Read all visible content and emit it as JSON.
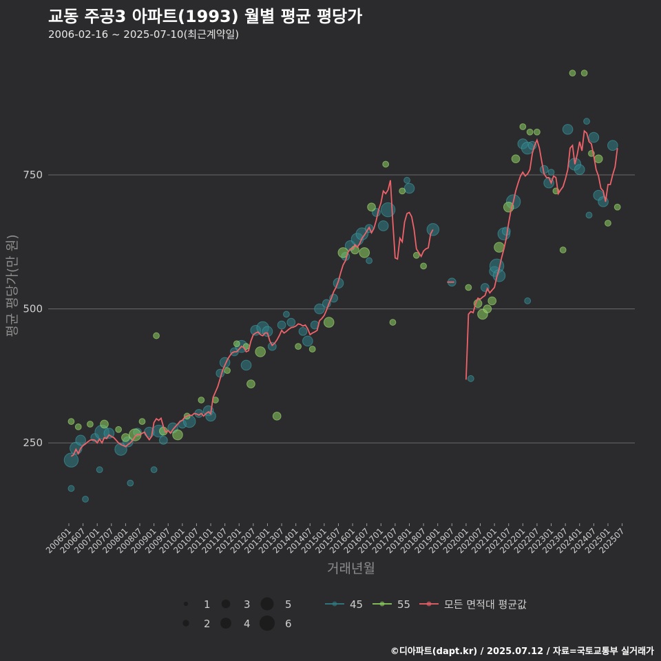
{
  "title": "교동 주공3 아파트(1993) 월별 평균 평당가",
  "subtitle": "2006-02-16 ~ 2025-07-10(최근계약일)",
  "footer": "©디아파트(dapt.kr) / 2025.07.12 / 자료=국토교통부 실거래가",
  "colors": {
    "background": "#2b2b2d",
    "grid": "#6a6a6a",
    "series_45": "#2f7f86",
    "series_55": "#8ccf5e",
    "series_all": "#f0636a"
  },
  "chart_data": {
    "type": "line+scatter",
    "xlabel": "거래년월",
    "ylabel": "평균 평당가(만 원)",
    "ylim": [
      100,
      980
    ],
    "yticks": [
      250,
      500,
      750
    ],
    "xticks": [
      "200601",
      "200607",
      "200701",
      "200707",
      "200801",
      "200807",
      "200901",
      "200907",
      "201001",
      "201007",
      "201101",
      "201107",
      "201201",
      "201207",
      "201301",
      "201307",
      "201401",
      "201407",
      "201501",
      "201507",
      "201601",
      "201607",
      "201701",
      "201707",
      "201801",
      "201807",
      "201901",
      "201907",
      "202001",
      "202007",
      "202101",
      "202107",
      "202201",
      "202207",
      "202301",
      "202307",
      "202401",
      "202407",
      "202501",
      "202507"
    ],
    "size_legend": [
      "1",
      "2",
      "3",
      "4",
      "5",
      "6"
    ],
    "color_legend": [
      {
        "key": "45",
        "label": "45"
      },
      {
        "key": "55",
        "label": "55"
      },
      {
        "key": "all",
        "label": "모든 면적대 평균값"
      }
    ],
    "line_all": [
      [
        "2006-02",
        225
      ],
      [
        "2006-03",
        228
      ],
      [
        "2006-04",
        238
      ],
      [
        "2006-05",
        230
      ],
      [
        "2006-06",
        240
      ],
      [
        "2006-07",
        245
      ],
      [
        "2006-08",
        248
      ],
      [
        "2006-09",
        252
      ],
      [
        "2006-10",
        255
      ],
      [
        "2006-11",
        256
      ],
      [
        "2006-12",
        255
      ],
      [
        "2007-01",
        250
      ],
      [
        "2007-02",
        257
      ],
      [
        "2007-03",
        250
      ],
      [
        "2007-04",
        260
      ],
      [
        "2007-05",
        258
      ],
      [
        "2007-06",
        265
      ],
      [
        "2007-07",
        262
      ],
      [
        "2007-08",
        260
      ],
      [
        "2007-09",
        255
      ],
      [
        "2007-10",
        250
      ],
      [
        "2007-11",
        247
      ],
      [
        "2007-12",
        245
      ],
      [
        "2008-01",
        243
      ],
      [
        "2008-02",
        247
      ],
      [
        "2008-03",
        250
      ],
      [
        "2008-04",
        255
      ],
      [
        "2008-05",
        262
      ],
      [
        "2008-06",
        266
      ],
      [
        "2008-07",
        265
      ],
      [
        "2008-08",
        268
      ],
      [
        "2008-09",
        270
      ],
      [
        "2008-10",
        262
      ],
      [
        "2008-11",
        256
      ],
      [
        "2008-12",
        262
      ],
      [
        "2009-01",
        288
      ],
      [
        "2009-02",
        295
      ],
      [
        "2009-03",
        292
      ],
      [
        "2009-04",
        296
      ],
      [
        "2009-05",
        280
      ],
      [
        "2009-06",
        270
      ],
      [
        "2009-07",
        273
      ],
      [
        "2009-08",
        268
      ],
      [
        "2009-09",
        275
      ],
      [
        "2009-10",
        280
      ],
      [
        "2009-11",
        285
      ],
      [
        "2009-12",
        290
      ],
      [
        "2010-01",
        292
      ],
      [
        "2010-02",
        298
      ],
      [
        "2010-03",
        300
      ],
      [
        "2010-04",
        302
      ],
      [
        "2010-05",
        301
      ],
      [
        "2010-06",
        305
      ],
      [
        "2010-07",
        304
      ],
      [
        "2010-08",
        302
      ],
      [
        "2010-09",
        305
      ],
      [
        "2010-10",
        300
      ],
      [
        "2010-11",
        305
      ],
      [
        "2010-12",
        308
      ],
      [
        "2011-01",
        304
      ],
      [
        "2011-02",
        335
      ],
      [
        "2011-03",
        345
      ],
      [
        "2011-04",
        355
      ],
      [
        "2011-05",
        370
      ],
      [
        "2011-06",
        385
      ],
      [
        "2011-07",
        395
      ],
      [
        "2011-08",
        405
      ],
      [
        "2011-09",
        412
      ],
      [
        "2011-10",
        418
      ],
      [
        "2011-11",
        420
      ],
      [
        "2011-12",
        420
      ],
      [
        "2012-01",
        425
      ],
      [
        "2012-02",
        430
      ],
      [
        "2012-03",
        428
      ],
      [
        "2012-04",
        420
      ],
      [
        "2012-05",
        422
      ],
      [
        "2012-06",
        440
      ],
      [
        "2012-07",
        452
      ],
      [
        "2012-08",
        455
      ],
      [
        "2012-09",
        457
      ],
      [
        "2012-10",
        452
      ],
      [
        "2012-11",
        450
      ],
      [
        "2012-12",
        455
      ],
      [
        "2013-01",
        455
      ],
      [
        "2013-02",
        440
      ],
      [
        "2013-03",
        432
      ],
      [
        "2013-04",
        436
      ],
      [
        "2013-05",
        442
      ],
      [
        "2013-06",
        450
      ],
      [
        "2013-07",
        460
      ],
      [
        "2013-08",
        455
      ],
      [
        "2013-09",
        458
      ],
      [
        "2013-10",
        462
      ],
      [
        "2013-11",
        465
      ],
      [
        "2013-12",
        466
      ],
      [
        "2014-01",
        468
      ],
      [
        "2014-02",
        472
      ],
      [
        "2014-03",
        471
      ],
      [
        "2014-04",
        468
      ],
      [
        "2014-05",
        470
      ],
      [
        "2014-06",
        463
      ],
      [
        "2014-07",
        452
      ],
      [
        "2014-08",
        455
      ],
      [
        "2014-09",
        457
      ],
      [
        "2014-10",
        460
      ],
      [
        "2014-11",
        478
      ],
      [
        "2014-12",
        482
      ],
      [
        "2015-01",
        488
      ],
      [
        "2015-02",
        498
      ],
      [
        "2015-03",
        510
      ],
      [
        "2015-04",
        520
      ],
      [
        "2015-05",
        532
      ],
      [
        "2015-06",
        540
      ],
      [
        "2015-07",
        552
      ],
      [
        "2015-08",
        568
      ],
      [
        "2015-09",
        582
      ],
      [
        "2015-10",
        590
      ],
      [
        "2015-11",
        605
      ],
      [
        "2015-12",
        612
      ],
      [
        "2016-01",
        612
      ],
      [
        "2016-02",
        620
      ],
      [
        "2016-03",
        615
      ],
      [
        "2016-04",
        622
      ],
      [
        "2016-05",
        632
      ],
      [
        "2016-06",
        638
      ],
      [
        "2016-07",
        645
      ],
      [
        "2016-08",
        652
      ],
      [
        "2016-09",
        642
      ],
      [
        "2016-10",
        650
      ],
      [
        "2016-11",
        665
      ],
      [
        "2016-12",
        685
      ],
      [
        "2017-01",
        698
      ],
      [
        "2017-02",
        720
      ],
      [
        "2017-03",
        715
      ],
      [
        "2017-04",
        722
      ],
      [
        "2017-05",
        740
      ],
      [
        "2017-06",
        662
      ],
      [
        "2017-07",
        595
      ],
      [
        "2017-08",
        593
      ],
      [
        "2017-09",
        632
      ],
      [
        "2017-10",
        625
      ],
      [
        "2017-11",
        662
      ],
      [
        "2017-12",
        678
      ],
      [
        "2018-01",
        680
      ],
      [
        "2018-02",
        672
      ],
      [
        "2018-03",
        648
      ],
      [
        "2018-04",
        612
      ],
      [
        "2018-05",
        605
      ],
      [
        "2018-06",
        598
      ],
      [
        "2018-07",
        608
      ],
      [
        "2018-08",
        612
      ],
      [
        "2018-09",
        614
      ],
      [
        "2018-10",
        640
      ],
      [
        "2018-11",
        648
      ],
      [
        "2019-05",
        550
      ],
      [
        "2019-06",
        550
      ],
      [
        "2019-07",
        550
      ],
      [
        "2019-08",
        550
      ],
      [
        "2020-01",
        368
      ],
      [
        "2020-02",
        490
      ],
      [
        "2020-03",
        495
      ],
      [
        "2020-04",
        493
      ],
      [
        "2020-05",
        510
      ],
      [
        "2020-06",
        520
      ],
      [
        "2020-07",
        518
      ],
      [
        "2020-08",
        522
      ],
      [
        "2020-09",
        525
      ],
      [
        "2020-10",
        538
      ],
      [
        "2020-11",
        530
      ],
      [
        "2020-12",
        535
      ],
      [
        "2021-01",
        540
      ],
      [
        "2021-02",
        560
      ],
      [
        "2021-03",
        575
      ],
      [
        "2021-04",
        595
      ],
      [
        "2021-05",
        612
      ],
      [
        "2021-06",
        632
      ],
      [
        "2021-07",
        660
      ],
      [
        "2021-08",
        685
      ],
      [
        "2021-09",
        700
      ],
      [
        "2021-10",
        720
      ],
      [
        "2021-11",
        735
      ],
      [
        "2021-12",
        748
      ],
      [
        "2022-01",
        755
      ],
      [
        "2022-02",
        748
      ],
      [
        "2022-03",
        752
      ],
      [
        "2022-04",
        760
      ],
      [
        "2022-05",
        790
      ],
      [
        "2022-06",
        805
      ],
      [
        "2022-07",
        815
      ],
      [
        "2022-08",
        800
      ],
      [
        "2022-09",
        775
      ],
      [
        "2022-10",
        752
      ],
      [
        "2022-11",
        745
      ],
      [
        "2022-12",
        745
      ],
      [
        "2023-01",
        735
      ],
      [
        "2023-02",
        748
      ],
      [
        "2023-03",
        745
      ],
      [
        "2023-04",
        715
      ],
      [
        "2023-05",
        722
      ],
      [
        "2023-06",
        728
      ],
      [
        "2023-07",
        742
      ],
      [
        "2023-08",
        760
      ],
      [
        "2023-09",
        800
      ],
      [
        "2023-10",
        805
      ],
      [
        "2023-11",
        770
      ],
      [
        "2023-12",
        788
      ],
      [
        "2024-01",
        812
      ],
      [
        "2024-02",
        795
      ],
      [
        "2024-03",
        832
      ],
      [
        "2024-04",
        828
      ],
      [
        "2024-05",
        812
      ],
      [
        "2024-06",
        808
      ],
      [
        "2024-07",
        785
      ],
      [
        "2024-08",
        760
      ],
      [
        "2024-09",
        748
      ],
      [
        "2024-10",
        725
      ],
      [
        "2024-11",
        720
      ],
      [
        "2024-12",
        700
      ],
      [
        "2025-01",
        732
      ],
      [
        "2025-02",
        732
      ],
      [
        "2025-03",
        750
      ],
      [
        "2025-04",
        765
      ],
      [
        "2025-05",
        800
      ]
    ],
    "scatter_45": [
      [
        "2006-02",
        218,
        6
      ],
      [
        "2006-04",
        240,
        5
      ],
      [
        "2006-06",
        255,
        4
      ],
      [
        "2006-12",
        260,
        3
      ],
      [
        "2007-03",
        270,
        6
      ],
      [
        "2007-06",
        268,
        4
      ],
      [
        "2007-11",
        238,
        5
      ],
      [
        "2008-02",
        252,
        4
      ],
      [
        "2008-06",
        270,
        3
      ],
      [
        "2008-11",
        270,
        4
      ],
      [
        "2009-03",
        272,
        5
      ],
      [
        "2009-05",
        255,
        3
      ],
      [
        "2009-09",
        278,
        4
      ],
      [
        "2010-01",
        285,
        3
      ],
      [
        "2010-04",
        290,
        5
      ],
      [
        "2010-08",
        305,
        3
      ],
      [
        "2010-12",
        310,
        4
      ],
      [
        "2011-01",
        300,
        4
      ],
      [
        "2011-05",
        380,
        3
      ],
      [
        "2011-07",
        400,
        4
      ],
      [
        "2011-11",
        420,
        3
      ],
      [
        "2012-02",
        430,
        5
      ],
      [
        "2012-04",
        395,
        4
      ],
      [
        "2012-08",
        460,
        4
      ],
      [
        "2012-11",
        465,
        5
      ],
      [
        "2013-01",
        458,
        4
      ],
      [
        "2013-03",
        430,
        3
      ],
      [
        "2013-07",
        470,
        3
      ],
      [
        "2013-11",
        475,
        3
      ],
      [
        "2014-04",
        458,
        3
      ],
      [
        "2014-06",
        440,
        4
      ],
      [
        "2014-09",
        470,
        3
      ],
      [
        "2014-11",
        500,
        4
      ],
      [
        "2015-02",
        510,
        3
      ],
      [
        "2015-05",
        520,
        3
      ],
      [
        "2015-07",
        548,
        4
      ],
      [
        "2015-10",
        598,
        3
      ],
      [
        "2015-12",
        618,
        4
      ],
      [
        "2016-03",
        630,
        5
      ],
      [
        "2016-05",
        640,
        5
      ],
      [
        "2016-08",
        650,
        3
      ],
      [
        "2016-11",
        680,
        3
      ],
      [
        "2017-02",
        655,
        4
      ],
      [
        "2017-04",
        685,
        6
      ],
      [
        "2018-01",
        725,
        4
      ],
      [
        "2018-11",
        648,
        5
      ],
      [
        "2019-07",
        550,
        3
      ],
      [
        "2020-09",
        540,
        3
      ],
      [
        "2021-01",
        570,
        4
      ],
      [
        "2021-02",
        580,
        6
      ],
      [
        "2021-03",
        562,
        5
      ],
      [
        "2021-05",
        640,
        5
      ],
      [
        "2021-06",
        645,
        3
      ],
      [
        "2021-09",
        700,
        6
      ],
      [
        "2022-01",
        808,
        4
      ],
      [
        "2022-03",
        800,
        5
      ],
      [
        "2022-05",
        805,
        3
      ],
      [
        "2022-10",
        760,
        3
      ],
      [
        "2022-12",
        735,
        4
      ],
      [
        "2023-08",
        835,
        4
      ],
      [
        "2023-11",
        770,
        5
      ],
      [
        "2024-01",
        760,
        4
      ],
      [
        "2024-07",
        820,
        4
      ],
      [
        "2024-09",
        712,
        4
      ],
      [
        "2024-11",
        700,
        4
      ],
      [
        "2025-03",
        805,
        4
      ]
    ],
    "scatter_55": [
      [
        "2006-02",
        290,
        2
      ],
      [
        "2006-05",
        280,
        2
      ],
      [
        "2006-10",
        285,
        2
      ],
      [
        "2007-04",
        285,
        3
      ],
      [
        "2007-10",
        275,
        2
      ],
      [
        "2008-01",
        260,
        3
      ],
      [
        "2008-05",
        265,
        5
      ],
      [
        "2008-08",
        290,
        2
      ],
      [
        "2009-02",
        450,
        2
      ],
      [
        "2009-05",
        272,
        3
      ],
      [
        "2009-11",
        265,
        4
      ],
      [
        "2010-03",
        300,
        2
      ],
      [
        "2010-09",
        330,
        2
      ],
      [
        "2011-03",
        330,
        2
      ],
      [
        "2011-08",
        385,
        2
      ],
      [
        "2011-12",
        435,
        2
      ],
      [
        "2012-04",
        430,
        2
      ],
      [
        "2012-06",
        360,
        3
      ],
      [
        "2012-10",
        420,
        4
      ],
      [
        "2013-05",
        300,
        3
      ],
      [
        "2014-02",
        430,
        2
      ],
      [
        "2014-08",
        425,
        2
      ],
      [
        "2015-03",
        475,
        4
      ],
      [
        "2015-09",
        605,
        4
      ],
      [
        "2016-02",
        610,
        3
      ],
      [
        "2016-06",
        605,
        4
      ],
      [
        "2016-09",
        690,
        3
      ],
      [
        "2017-03",
        770,
        2
      ],
      [
        "2017-06",
        475,
        2
      ],
      [
        "2017-10",
        720,
        2
      ],
      [
        "2018-04",
        600,
        2
      ],
      [
        "2018-07",
        580,
        2
      ],
      [
        "2020-02",
        540,
        2
      ],
      [
        "2020-06",
        510,
        3
      ],
      [
        "2020-08",
        490,
        4
      ],
      [
        "2020-10",
        500,
        3
      ],
      [
        "2020-12",
        515,
        3
      ],
      [
        "2021-03",
        615,
        4
      ],
      [
        "2021-07",
        690,
        4
      ],
      [
        "2021-10",
        780,
        3
      ],
      [
        "2022-01",
        840,
        2
      ],
      [
        "2022-04",
        830,
        2
      ],
      [
        "2022-07",
        830,
        2
      ],
      [
        "2023-03",
        720,
        2
      ],
      [
        "2023-06",
        610,
        2
      ],
      [
        "2023-10",
        940,
        2
      ],
      [
        "2024-03",
        940,
        2
      ],
      [
        "2024-06",
        790,
        2
      ],
      [
        "2024-09",
        780,
        3
      ],
      [
        "2025-01",
        660,
        2
      ],
      [
        "2025-05",
        690,
        2
      ]
    ],
    "scatter_small_45": [
      [
        "2006-02",
        165,
        2
      ],
      [
        "2006-08",
        145,
        2
      ],
      [
        "2007-02",
        200,
        2
      ],
      [
        "2008-03",
        175,
        2
      ],
      [
        "2009-01",
        200,
        2
      ],
      [
        "2013-09",
        490,
        2
      ],
      [
        "2016-08",
        590,
        2
      ],
      [
        "2017-12",
        740,
        2
      ],
      [
        "2020-03",
        370,
        2
      ],
      [
        "2022-03",
        515,
        2
      ],
      [
        "2023-01",
        755,
        2
      ],
      [
        "2024-04",
        850,
        2
      ],
      [
        "2024-05",
        675,
        2
      ]
    ]
  }
}
